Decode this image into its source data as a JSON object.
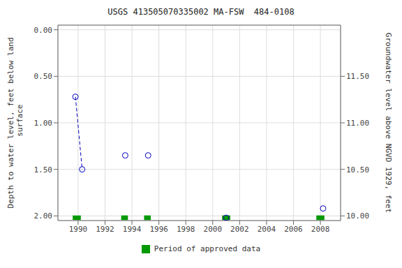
{
  "chart_data": {
    "type": "scatter",
    "title": "USGS 413505070335002 MA-FSW  484-0108",
    "ylabel": "Depth to water level, feet below land\n surface",
    "y2label": "Groundwater level above NGVD 1929, feet",
    "xlim": [
      1988.5,
      2009.5
    ],
    "xticks": [
      1990,
      1992,
      1994,
      1996,
      1998,
      2000,
      2002,
      2004,
      2006,
      2008
    ],
    "ylim": [
      2.05,
      -0.05
    ],
    "yticks": [
      {
        "value": 0.0,
        "label": "0.00"
      },
      {
        "value": 0.5,
        "label": "0.50"
      },
      {
        "value": 1.0,
        "label": "1.00"
      },
      {
        "value": 1.5,
        "label": "1.50"
      },
      {
        "value": 2.0,
        "label": "2.00"
      }
    ],
    "y2lim": [
      9.95,
      12.05
    ],
    "y2ticks": [
      {
        "value": 10.0,
        "label": "10.00"
      },
      {
        "value": 10.5,
        "label": "10.50"
      },
      {
        "value": 11.0,
        "label": "11.00"
      },
      {
        "value": 11.5,
        "label": "11.50"
      }
    ],
    "grid": true,
    "legend": "bottom",
    "series": [
      {
        "type": "line",
        "line_style": "dashed",
        "color": "#0000bb",
        "x": [
          1989.8,
          1990.3
        ],
        "values": [
          0.72,
          1.5
        ]
      },
      {
        "type": "scatter",
        "marker": "open_circle",
        "color": "#0000bb",
        "x": [
          1989.8,
          1990.3,
          1993.5,
          1995.2,
          2001.0,
          2008.2
        ],
        "values": [
          0.72,
          1.5,
          1.35,
          1.35,
          2.02,
          1.92
        ]
      },
      {
        "type": "bar",
        "orientation": "horizontal",
        "name": "Period of approved data",
        "color": "#009900",
        "y": 2.02,
        "height": 0.05,
        "x_start": [
          1989.6,
          1993.2,
          1994.9,
          2000.7,
          2007.7
        ],
        "x_end": [
          1990.2,
          1993.7,
          1995.4,
          2001.3,
          2008.3
        ]
      }
    ]
  }
}
